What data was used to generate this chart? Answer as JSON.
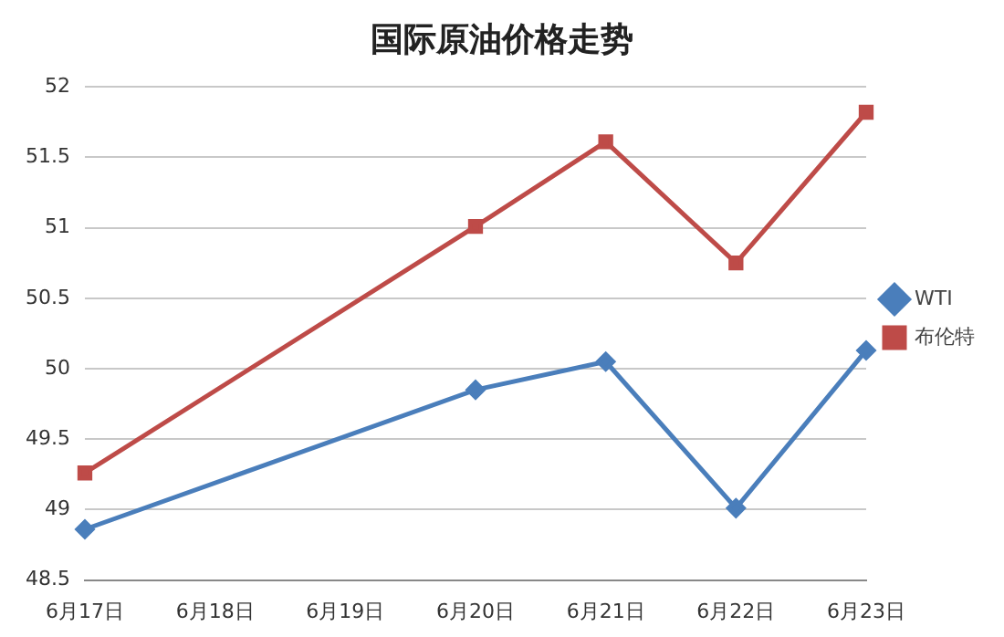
{
  "chart_data": {
    "type": "line",
    "title": "国际原油价格走势",
    "categories": [
      "6月17日",
      "6月18日",
      "6月19日",
      "6月20日",
      "6月21日",
      "6月22日",
      "6月23日"
    ],
    "series": [
      {
        "name": "WTI",
        "color": "#4a7ebb",
        "marker": "diamond",
        "values": [
          48.86,
          null,
          null,
          49.85,
          50.05,
          49.01,
          50.13
        ]
      },
      {
        "name": "布伦特",
        "color": "#be4b48",
        "marker": "square",
        "values": [
          49.26,
          null,
          null,
          51.01,
          51.61,
          50.75,
          51.82
        ]
      }
    ],
    "ylim": [
      48.5,
      52
    ],
    "yticks": [
      48.5,
      49,
      49.5,
      50,
      50.5,
      51,
      51.5,
      52
    ],
    "grid": "y",
    "legend": "right"
  }
}
